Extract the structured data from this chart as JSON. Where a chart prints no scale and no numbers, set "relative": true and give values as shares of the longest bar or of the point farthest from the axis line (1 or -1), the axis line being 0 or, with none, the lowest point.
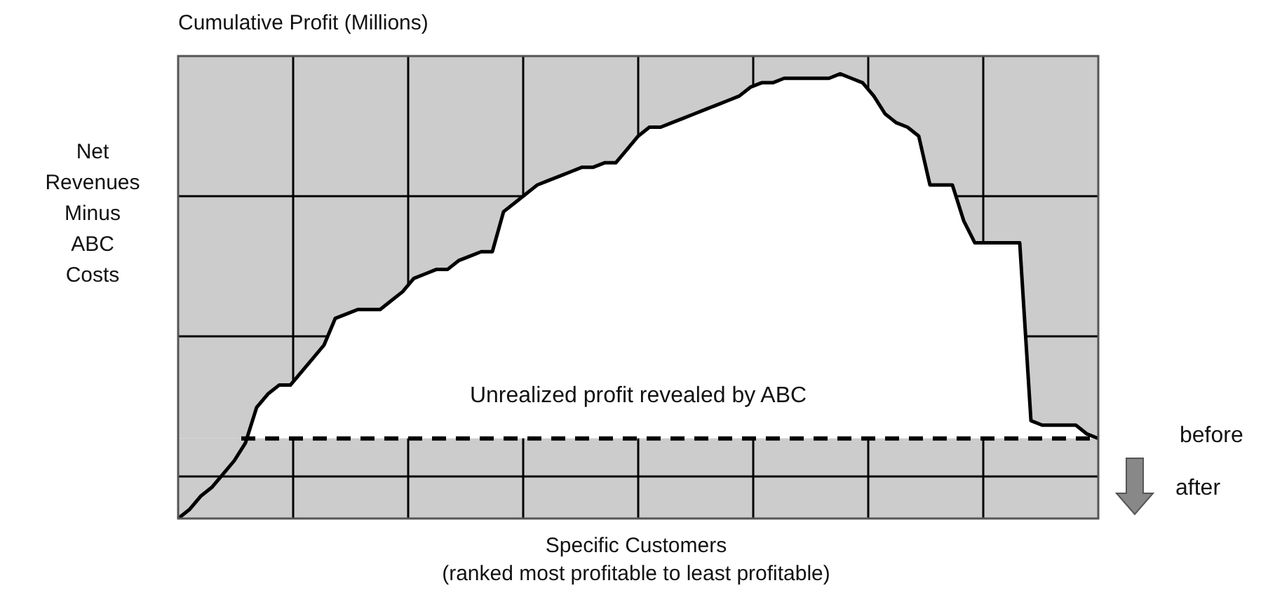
{
  "chart_data": {
    "type": "line",
    "title": "Cumulative Profit (Millions)",
    "ylabel": "Net Revenues Minus ABC Costs",
    "xlabel": "Specific Customers\n(ranked most profitable to least profitable)",
    "relative": true,
    "grid": true,
    "categories": [
      null,
      null,
      null,
      null,
      null,
      null,
      null,
      null,
      null,
      null,
      null,
      null,
      null,
      null,
      null,
      null,
      null,
      null,
      null,
      null,
      null,
      null,
      null,
      null,
      null,
      null,
      null,
      null,
      null,
      null,
      null,
      null,
      null,
      null,
      null,
      null,
      null,
      null,
      null,
      null,
      null,
      null,
      null,
      null,
      null,
      null,
      null,
      null,
      null,
      null,
      null,
      null,
      null,
      null,
      null,
      null,
      null,
      null,
      null,
      null,
      null,
      null,
      null,
      null,
      null,
      null,
      null,
      null,
      null,
      null,
      null,
      null,
      null,
      null,
      null,
      null,
      null,
      null,
      null,
      null,
      null,
      null,
      null
    ],
    "series": [
      {
        "color": "#000000",
        "values": [
          0,
          0.02,
          0.05,
          0.07,
          0.1,
          0.13,
          0.17,
          0.25,
          0.28,
          0.3,
          0.3,
          0.33,
          0.36,
          0.39,
          0.45,
          0.46,
          0.47,
          0.47,
          0.47,
          0.49,
          0.51,
          0.54,
          0.55,
          0.56,
          0.56,
          0.58,
          0.59,
          0.6,
          0.6,
          0.69,
          0.71,
          0.73,
          0.75,
          0.76,
          0.77,
          0.78,
          0.79,
          0.79,
          0.8,
          0.8,
          0.83,
          0.86,
          0.88,
          0.88,
          0.89,
          0.9,
          0.91,
          0.92,
          0.93,
          0.94,
          0.95,
          0.97,
          0.98,
          0.98,
          0.99,
          0.99,
          0.99,
          0.99,
          0.99,
          1.0,
          0.99,
          0.98,
          0.95,
          0.91,
          0.89,
          0.88,
          0.86,
          0.75,
          0.75,
          0.75,
          0.67,
          0.62,
          0.62,
          0.62,
          0.62,
          0.62,
          0.22,
          0.21,
          0.21,
          0.21,
          0.21,
          0.19,
          0.18
        ]
      }
    ],
    "ref_lines": [
      {
        "axis": "y",
        "value": 0.18,
        "label": "before",
        "line_style": "dashed",
        "color": "#000000"
      }
    ],
    "annotations": [
      "Unrealized profit revealed by ABC",
      "after"
    ]
  }
}
